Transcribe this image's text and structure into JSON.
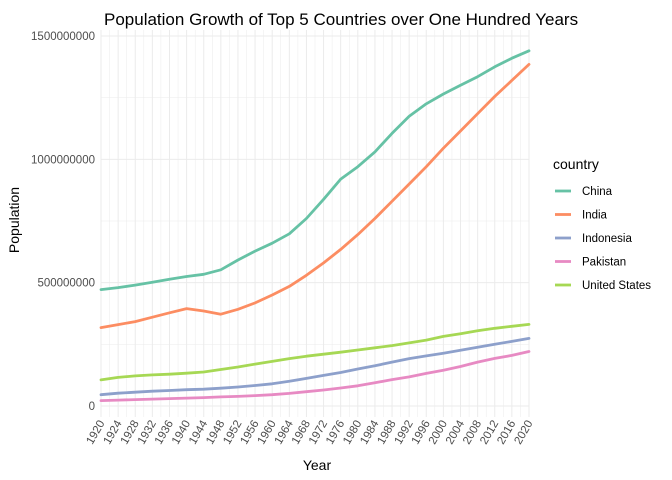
{
  "chart_data": {
    "type": "line",
    "title": "Population Growth of Top 5 Countries over One Hundred Years",
    "xlabel": "Year",
    "ylabel": "Population",
    "xlim": [
      1920,
      2020
    ],
    "ylim": [
      0,
      1500000000
    ],
    "x_ticks": [
      "1920",
      "1924",
      "1928",
      "1932",
      "1936",
      "1940",
      "1944",
      "1948",
      "1952",
      "1956",
      "1960",
      "1964",
      "1968",
      "1972",
      "1976",
      "1980",
      "1984",
      "1988",
      "1992",
      "1996",
      "2000",
      "2004",
      "2008",
      "2012",
      "2016",
      "2020"
    ],
    "y_ticks": [
      "0",
      "500000000",
      "1000000000",
      "1500000000"
    ],
    "grid": true,
    "legend_title": "country",
    "legend_position": "right",
    "x": [
      1920,
      1924,
      1928,
      1932,
      1936,
      1940,
      1944,
      1948,
      1952,
      1956,
      1960,
      1964,
      1968,
      1972,
      1976,
      1980,
      1984,
      1988,
      1992,
      1996,
      2000,
      2004,
      2008,
      2012,
      2016,
      2020
    ],
    "series": [
      {
        "name": "China",
        "color": "#66c2a5",
        "values": [
          472000000,
          480000000,
          490000000,
          502000000,
          514000000,
          525000000,
          534000000,
          552000000,
          592000000,
          628000000,
          660000000,
          698000000,
          760000000,
          838000000,
          920000000,
          970000000,
          1030000000,
          1105000000,
          1175000000,
          1225000000,
          1265000000,
          1300000000,
          1335000000,
          1375000000,
          1410000000,
          1440000000
        ]
      },
      {
        "name": "India",
        "color": "#fc8d62",
        "values": [
          318000000,
          330000000,
          342000000,
          360000000,
          378000000,
          395000000,
          385000000,
          372000000,
          392000000,
          418000000,
          450000000,
          485000000,
          530000000,
          580000000,
          635000000,
          695000000,
          760000000,
          830000000,
          900000000,
          970000000,
          1045000000,
          1115000000,
          1185000000,
          1255000000,
          1320000000,
          1385000000
        ]
      },
      {
        "name": "Indonesia",
        "color": "#8da0cb",
        "values": [
          46000000,
          52000000,
          56000000,
          60000000,
          63000000,
          66000000,
          68000000,
          72000000,
          77000000,
          83000000,
          90000000,
          100000000,
          112000000,
          124000000,
          136000000,
          150000000,
          163000000,
          178000000,
          192000000,
          203000000,
          214000000,
          226000000,
          238000000,
          250000000,
          262000000,
          274000000
        ]
      },
      {
        "name": "Pakistan",
        "color": "#e78ac3",
        "values": [
          22000000,
          24000000,
          26000000,
          28000000,
          30000000,
          32000000,
          34000000,
          37000000,
          39000000,
          42000000,
          46000000,
          51000000,
          58000000,
          65000000,
          73000000,
          82000000,
          94000000,
          107000000,
          118000000,
          132000000,
          145000000,
          160000000,
          178000000,
          193000000,
          205000000,
          221000000
        ]
      },
      {
        "name": "United States",
        "color": "#a6d854",
        "values": [
          106000000,
          116000000,
          122000000,
          126000000,
          129000000,
          133000000,
          138000000,
          148000000,
          158000000,
          170000000,
          181000000,
          192000000,
          202000000,
          210000000,
          218000000,
          227000000,
          236000000,
          245000000,
          256000000,
          267000000,
          282000000,
          293000000,
          305000000,
          315000000,
          323000000,
          331000000
        ]
      }
    ]
  }
}
